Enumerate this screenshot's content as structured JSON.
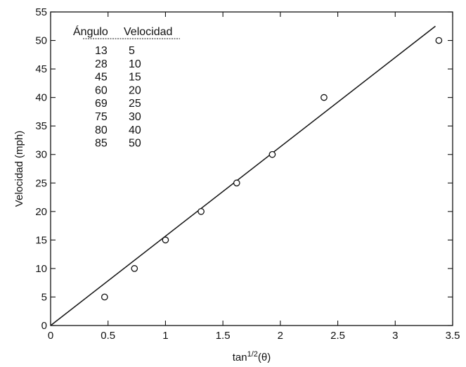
{
  "chart_data": {
    "type": "scatter",
    "title": "",
    "xlabel_base": "tan",
    "xlabel_sup": "1/2",
    "xlabel_tail": "(θ)",
    "ylabel": "Velocidad (mph)",
    "xlim": [
      0,
      3.5
    ],
    "ylim": [
      0,
      55
    ],
    "x_ticks": [
      0,
      0.5,
      1,
      1.5,
      2,
      2.5,
      3,
      3.5
    ],
    "x_tick_labels": [
      "0",
      "0.5",
      "1",
      "1.5",
      "2",
      "2.5",
      "3",
      "3.5"
    ],
    "y_ticks": [
      0,
      5,
      10,
      15,
      20,
      25,
      30,
      35,
      40,
      45,
      50,
      55
    ],
    "y_tick_labels": [
      "0",
      "5",
      "10",
      "15",
      "20",
      "25",
      "30",
      "35",
      "40",
      "45",
      "50",
      "55"
    ],
    "grid": false,
    "series": [
      {
        "marker": "open-circle",
        "points": [
          {
            "x": 0.47,
            "y": 5
          },
          {
            "x": 0.73,
            "y": 10
          },
          {
            "x": 1.0,
            "y": 15
          },
          {
            "x": 1.31,
            "y": 20
          },
          {
            "x": 1.62,
            "y": 25
          },
          {
            "x": 1.93,
            "y": 30
          },
          {
            "x": 2.38,
            "y": 40
          },
          {
            "x": 3.38,
            "y": 50
          }
        ]
      }
    ],
    "fit_line": {
      "x": [
        0,
        3.35
      ],
      "y": [
        0,
        52.5
      ]
    },
    "inset_table": {
      "headers": [
        "Ángulo",
        "Velocidad"
      ],
      "rows": [
        [
          "13",
          "5"
        ],
        [
          "28",
          "10"
        ],
        [
          "45",
          "15"
        ],
        [
          "60",
          "20"
        ],
        [
          "69",
          "25"
        ],
        [
          "75",
          "30"
        ],
        [
          "80",
          "40"
        ],
        [
          "85",
          "50"
        ]
      ]
    }
  },
  "colors": {
    "ink": "#111111",
    "background": "#ffffff"
  }
}
